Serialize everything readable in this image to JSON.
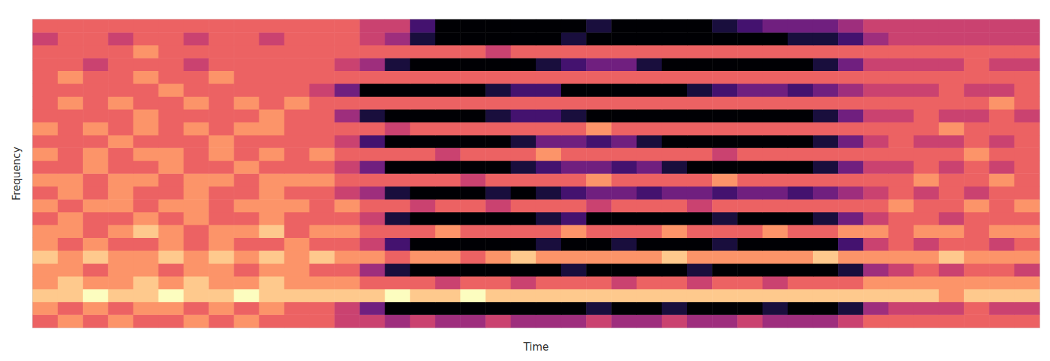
{
  "chart_data": {
    "type": "heatmap",
    "x_label": "Time",
    "y_label": "Frequency",
    "tick_labels": false,
    "grid": false,
    "value_range": [
      0,
      9
    ],
    "colors": [
      "#000004",
      "#1c1044",
      "#4f127b",
      "#812581",
      "#b5367a",
      "#e55064",
      "#fb8761",
      "#fec287",
      "#fcfdbf"
    ],
    "cells": [
      [
        6,
        7,
        6,
        7,
        6,
        6,
        7,
        6,
        7,
        6,
        6,
        6,
        5,
        5,
        4,
        5,
        4,
        4,
        5,
        4,
        4,
        4,
        5,
        4,
        4,
        5,
        4,
        4,
        5,
        4,
        4,
        4,
        5,
        6,
        6,
        6,
        6,
        6,
        6,
        6
      ],
      [
        7,
        6,
        7,
        6,
        7,
        7,
        6,
        7,
        6,
        7,
        6,
        6,
        5,
        3,
        0,
        0,
        0,
        0,
        0,
        0,
        0,
        0,
        1,
        0,
        0,
        1,
        0,
        0,
        0,
        1,
        0,
        0,
        1,
        4,
        5,
        5,
        5,
        6,
        5,
        5
      ],
      [
        8,
        8,
        9,
        8,
        8,
        9,
        8,
        8,
        9,
        8,
        8,
        8,
        8,
        8,
        9,
        8,
        8,
        9,
        8,
        8,
        8,
        8,
        8,
        8,
        8,
        8,
        8,
        8,
        8,
        8,
        8,
        8,
        8,
        8,
        8,
        8,
        7,
        8,
        8,
        8
      ],
      [
        7,
        8,
        7,
        7,
        8,
        7,
        8,
        7,
        7,
        8,
        7,
        7,
        7,
        6,
        6,
        6,
        5,
        6,
        6,
        5,
        6,
        6,
        6,
        5,
        6,
        6,
        5,
        6,
        6,
        5,
        6,
        6,
        6,
        7,
        7,
        7,
        7,
        7,
        7,
        7
      ],
      [
        7,
        7,
        6,
        7,
        7,
        6,
        7,
        7,
        6,
        7,
        7,
        6,
        6,
        4,
        1,
        0,
        0,
        0,
        0,
        0,
        0,
        1,
        0,
        0,
        0,
        0,
        1,
        0,
        0,
        0,
        0,
        0,
        1,
        4,
        5,
        6,
        5,
        6,
        6,
        5
      ],
      [
        8,
        7,
        8,
        7,
        7,
        8,
        7,
        8,
        7,
        8,
        7,
        8,
        7,
        7,
        6,
        7,
        7,
        6,
        7,
        8,
        7,
        7,
        7,
        7,
        7,
        8,
        7,
        7,
        7,
        7,
        7,
        8,
        7,
        7,
        7,
        7,
        8,
        7,
        7,
        7
      ],
      [
        7,
        6,
        7,
        6,
        6,
        7,
        6,
        7,
        6,
        6,
        7,
        6,
        6,
        5,
        2,
        0,
        0,
        0,
        0,
        0,
        1,
        0,
        0,
        1,
        0,
        0,
        0,
        1,
        0,
        0,
        0,
        0,
        2,
        5,
        6,
        5,
        6,
        6,
        5,
        6
      ],
      [
        7,
        7,
        6,
        7,
        8,
        7,
        6,
        7,
        7,
        8,
        6,
        7,
        7,
        6,
        6,
        6,
        7,
        6,
        6,
        6,
        6,
        7,
        6,
        6,
        6,
        7,
        6,
        6,
        6,
        7,
        6,
        6,
        7,
        7,
        6,
        7,
        7,
        6,
        7,
        7
      ],
      [
        6,
        7,
        6,
        6,
        7,
        6,
        7,
        6,
        6,
        7,
        6,
        6,
        6,
        5,
        1,
        0,
        0,
        0,
        0,
        0,
        1,
        2,
        0,
        0,
        0,
        0,
        0,
        1,
        0,
        0,
        0,
        1,
        3,
        5,
        6,
        6,
        5,
        6,
        6,
        6
      ],
      [
        7,
        6,
        7,
        7,
        6,
        7,
        7,
        6,
        7,
        7,
        7,
        6,
        7,
        6,
        6,
        5,
        6,
        6,
        5,
        6,
        6,
        6,
        5,
        6,
        6,
        6,
        5,
        6,
        6,
        6,
        6,
        6,
        6,
        6,
        7,
        6,
        6,
        7,
        6,
        7
      ],
      [
        6,
        7,
        6,
        7,
        6,
        6,
        7,
        6,
        6,
        7,
        6,
        6,
        5,
        4,
        1,
        0,
        0,
        0,
        1,
        0,
        1,
        2,
        3,
        3,
        2,
        3,
        3,
        2,
        3,
        3,
        2,
        3,
        4,
        5,
        6,
        5,
        6,
        5,
        6,
        6
      ],
      [
        7,
        7,
        6,
        7,
        7,
        6,
        7,
        7,
        6,
        7,
        7,
        7,
        6,
        6,
        6,
        6,
        6,
        5,
        6,
        6,
        6,
        6,
        7,
        6,
        6,
        6,
        6,
        7,
        6,
        6,
        6,
        6,
        6,
        6,
        6,
        7,
        6,
        6,
        7,
        6
      ],
      [
        6,
        6,
        7,
        6,
        6,
        7,
        6,
        6,
        7,
        6,
        6,
        6,
        5,
        3,
        0,
        0,
        0,
        0,
        0,
        1,
        2,
        3,
        3,
        2,
        3,
        1,
        0,
        0,
        0,
        0,
        0,
        1,
        3,
        5,
        5,
        6,
        5,
        6,
        5,
        6
      ],
      [
        7,
        6,
        7,
        6,
        7,
        7,
        6,
        7,
        6,
        7,
        6,
        7,
        6,
        6,
        6,
        6,
        5,
        6,
        6,
        6,
        7,
        6,
        6,
        6,
        6,
        6,
        6,
        5,
        6,
        6,
        6,
        6,
        6,
        6,
        6,
        6,
        6,
        7,
        6,
        6
      ],
      [
        6,
        6,
        6,
        7,
        6,
        6,
        6,
        7,
        6,
        6,
        6,
        6,
        5,
        2,
        0,
        0,
        0,
        0,
        0,
        1,
        3,
        3,
        2,
        3,
        1,
        0,
        0,
        0,
        0,
        0,
        0,
        1,
        3,
        5,
        6,
        5,
        5,
        6,
        5,
        6
      ],
      [
        7,
        6,
        7,
        6,
        7,
        6,
        7,
        6,
        7,
        7,
        6,
        6,
        6,
        6,
        5,
        6,
        6,
        6,
        6,
        6,
        6,
        6,
        7,
        6,
        6,
        6,
        6,
        6,
        6,
        6,
        6,
        6,
        6,
        6,
        6,
        6,
        7,
        6,
        6,
        6
      ],
      [
        6,
        6,
        6,
        6,
        7,
        6,
        6,
        6,
        6,
        7,
        6,
        6,
        4,
        1,
        0,
        0,
        0,
        0,
        1,
        2,
        2,
        1,
        0,
        0,
        0,
        0,
        0,
        0,
        0,
        0,
        0,
        1,
        3,
        5,
        5,
        6,
        5,
        5,
        6,
        5
      ],
      [
        6,
        7,
        6,
        7,
        6,
        6,
        7,
        6,
        7,
        6,
        7,
        6,
        6,
        6,
        6,
        6,
        6,
        6,
        6,
        6,
        6,
        6,
        6,
        6,
        6,
        6,
        6,
        6,
        6,
        6,
        6,
        6,
        6,
        6,
        6,
        6,
        6,
        6,
        7,
        6
      ],
      [
        6,
        6,
        6,
        6,
        6,
        7,
        6,
        6,
        6,
        6,
        6,
        5,
        3,
        0,
        0,
        0,
        0,
        0,
        1,
        2,
        2,
        0,
        0,
        0,
        0,
        0,
        1,
        2,
        3,
        3,
        2,
        3,
        4,
        5,
        5,
        5,
        6,
        5,
        5,
        6
      ],
      [
        6,
        7,
        6,
        6,
        7,
        6,
        6,
        7,
        6,
        6,
        6,
        6,
        6,
        6,
        6,
        6,
        6,
        6,
        6,
        6,
        6,
        6,
        6,
        6,
        6,
        6,
        6,
        6,
        6,
        6,
        6,
        6,
        6,
        6,
        6,
        6,
        6,
        6,
        6,
        6
      ],
      [
        6,
        6,
        5,
        6,
        6,
        6,
        5,
        6,
        6,
        6,
        6,
        6,
        5,
        4,
        1,
        0,
        0,
        0,
        0,
        0,
        1,
        2,
        3,
        3,
        1,
        0,
        0,
        0,
        0,
        0,
        0,
        1,
        3,
        5,
        5,
        5,
        5,
        6,
        5,
        5
      ],
      [
        6,
        6,
        6,
        6,
        7,
        6,
        6,
        6,
        6,
        6,
        6,
        6,
        6,
        6,
        6,
        6,
        6,
        6,
        5,
        6,
        6,
        6,
        6,
        6,
        6,
        6,
        6,
        6,
        6,
        6,
        6,
        6,
        6,
        6,
        6,
        6,
        6,
        6,
        6,
        6
      ],
      [
        5,
        6,
        6,
        5,
        6,
        6,
        5,
        6,
        6,
        5,
        6,
        6,
        6,
        5,
        4,
        1,
        0,
        0,
        0,
        0,
        0,
        1,
        0,
        0,
        0,
        0,
        0,
        0,
        0,
        0,
        1,
        1,
        2,
        4,
        5,
        5,
        5,
        5,
        5,
        5
      ],
      [
        6,
        6,
        6,
        6,
        6,
        6,
        6,
        6,
        6,
        6,
        6,
        6,
        6,
        5,
        5,
        2,
        0,
        0,
        0,
        0,
        0,
        0,
        1,
        0,
        0,
        0,
        0,
        1,
        2,
        3,
        3,
        3,
        4,
        5,
        5,
        5,
        5,
        5,
        5,
        5
      ]
    ]
  }
}
